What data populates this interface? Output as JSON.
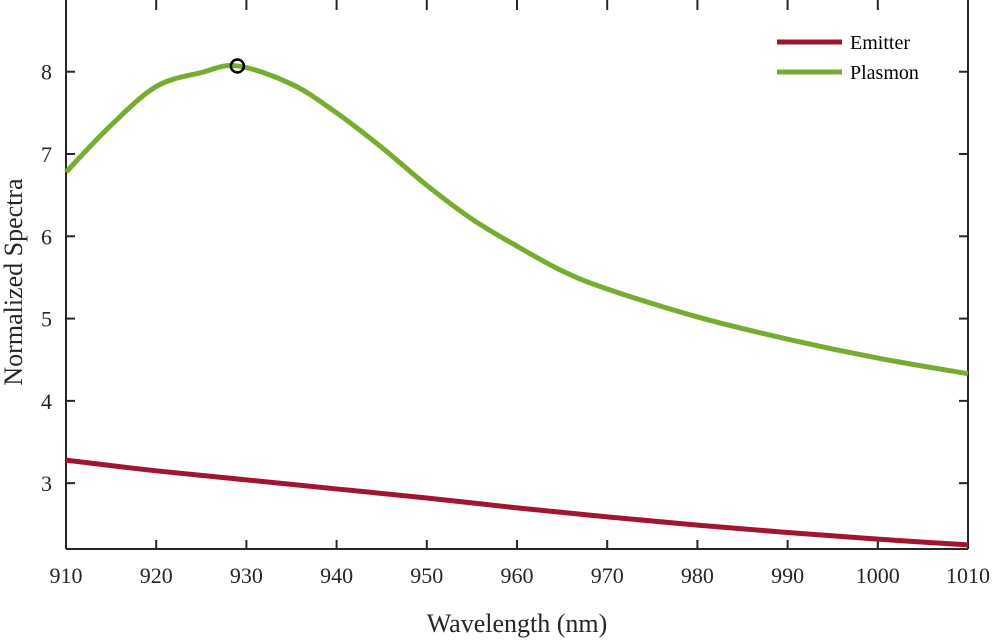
{
  "chart_data": {
    "type": "line",
    "title": "",
    "xlabel": "Wavelength (nm)",
    "ylabel": "Normalized Spectra",
    "xlim": [
      910,
      1010
    ],
    "ylim": [
      2.2,
      8.75
    ],
    "xticks": [
      910,
      920,
      930,
      940,
      950,
      960,
      970,
      980,
      990,
      1000,
      1010
    ],
    "yticks": [
      3,
      4,
      5,
      6,
      7,
      8
    ],
    "grid": false,
    "legend_position": "top-right",
    "series": [
      {
        "name": "Emitter",
        "color": "#A2142F",
        "x": [
          910,
          920,
          930,
          940,
          950,
          960,
          970,
          980,
          990,
          1000,
          1010
        ],
        "y": [
          3.28,
          3.15,
          3.04,
          2.93,
          2.82,
          2.7,
          2.59,
          2.49,
          2.4,
          2.32,
          2.25
        ]
      },
      {
        "name": "Plasmon",
        "color": "#77AC30",
        "x": [
          910,
          915,
          920,
          925,
          929,
          935,
          940,
          945,
          950,
          955,
          960,
          965,
          970,
          980,
          990,
          1000,
          1010
        ],
        "y": [
          6.78,
          7.35,
          7.82,
          7.99,
          8.07,
          7.85,
          7.5,
          7.08,
          6.62,
          6.21,
          5.88,
          5.58,
          5.36,
          5.02,
          4.75,
          4.52,
          4.33
        ]
      }
    ],
    "markers": [
      {
        "series": "Plasmon",
        "x": 929,
        "y": 8.07,
        "style": "open-circle"
      }
    ]
  }
}
